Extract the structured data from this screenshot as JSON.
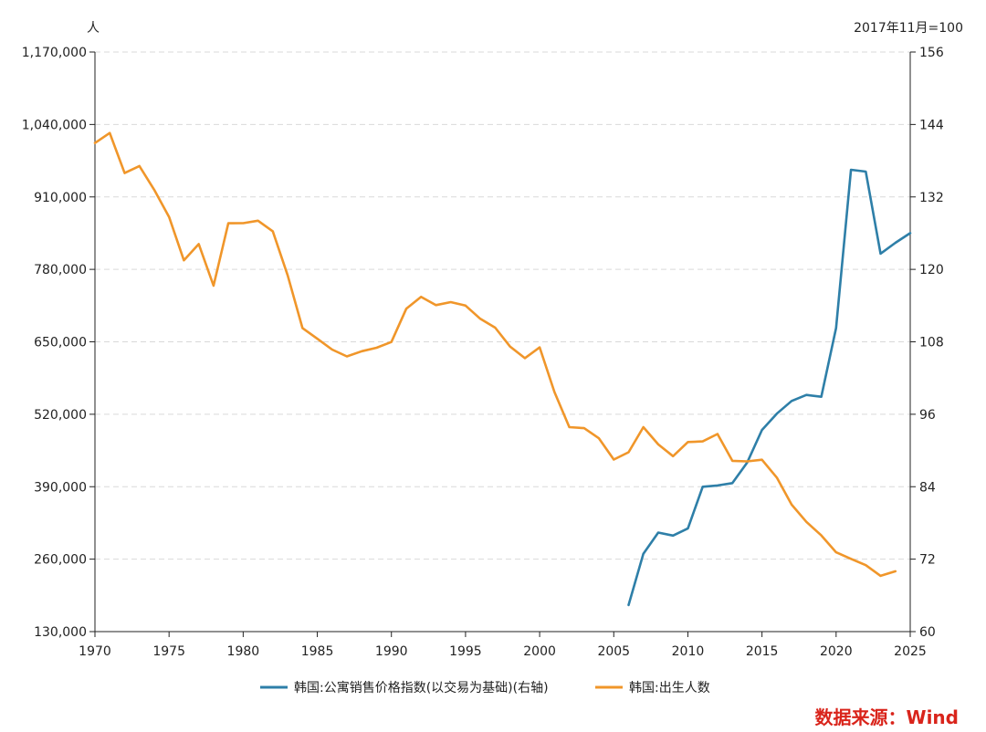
{
  "chart_data": {
    "type": "line",
    "left_axis_unit": "人",
    "right_axis_unit": "2017年11月=100",
    "x_ticks": [
      1970,
      1975,
      1980,
      1985,
      1990,
      1995,
      2000,
      2005,
      2010,
      2015,
      2020,
      2025
    ],
    "x_range": [
      1970,
      2025
    ],
    "left_ticks": [
      "1,170,000",
      "1,040,000",
      "910,000",
      "780,000",
      "650,000",
      "520,000",
      "390,000",
      "260,000",
      "130,000"
    ],
    "left_tick_values": [
      1170000,
      1040000,
      910000,
      780000,
      650000,
      520000,
      390000,
      260000,
      130000
    ],
    "left_range": [
      130000,
      1170000
    ],
    "right_ticks": [
      "156",
      "144",
      "132",
      "120",
      "108",
      "96",
      "84",
      "72",
      "60"
    ],
    "right_tick_values": [
      156,
      144,
      132,
      120,
      108,
      96,
      84,
      72,
      60
    ],
    "right_range": [
      60,
      156
    ],
    "grid": "horizontal dashed",
    "legend_position": "bottom",
    "series": [
      {
        "name": "韩国:公寓销售价格指数(以交易为基础)(右轴)",
        "axis": "right",
        "color": "#2e7fa8",
        "x": [
          2006,
          2007,
          2008,
          2009,
          2010,
          2011,
          2012,
          2013,
          2014,
          2015,
          2016,
          2017,
          2018,
          2019,
          2020,
          2021,
          2022,
          2023,
          2024,
          2025
        ],
        "values": [
          64.4,
          72.9,
          76.4,
          75.9,
          77.1,
          84.0,
          84.2,
          84.6,
          88.0,
          93.4,
          96.1,
          98.2,
          99.2,
          98.9,
          110.3,
          136.5,
          136.2,
          122.6,
          124.4,
          126.0
        ]
      },
      {
        "name": "韩国:出生人数",
        "axis": "left",
        "color": "#f0962a",
        "x": [
          1970,
          1971,
          1972,
          1973,
          1974,
          1975,
          1976,
          1977,
          1978,
          1979,
          1980,
          1981,
          1982,
          1983,
          1984,
          1985,
          1986,
          1987,
          1988,
          1989,
          1990,
          1991,
          1992,
          1993,
          1994,
          1995,
          1996,
          1997,
          1998,
          1999,
          2000,
          2001,
          2002,
          2003,
          2004,
          2005,
          2006,
          2007,
          2008,
          2009,
          2010,
          2011,
          2012,
          2013,
          2014,
          2015,
          2016,
          2017,
          2018,
          2019,
          2020,
          2021,
          2022,
          2023,
          2024
        ],
        "values": [
          1006645,
          1024773,
          952780,
          965521,
          922823,
          874030,
          796331,
          825339,
          750728,
          862669,
          862835,
          867409,
          848312,
          769155,
          674793,
          655489,
          636019,
          623831,
          633092,
          639431,
          649738,
          709275,
          730678,
          715826,
          721185,
          715020,
          691226,
          675394,
          641594,
          620668,
          640089,
          559934,
          496911,
          495036,
          476958,
          438707,
          451759,
          496822,
          465892,
          444849,
          470171,
          471265,
          484550,
          436455,
          435435,
          438420,
          406243,
          357771,
          326822,
          302676,
          272337,
          260562,
          249186,
          230028,
          238300
        ]
      }
    ],
    "source_text": "数据来源：Wind"
  }
}
